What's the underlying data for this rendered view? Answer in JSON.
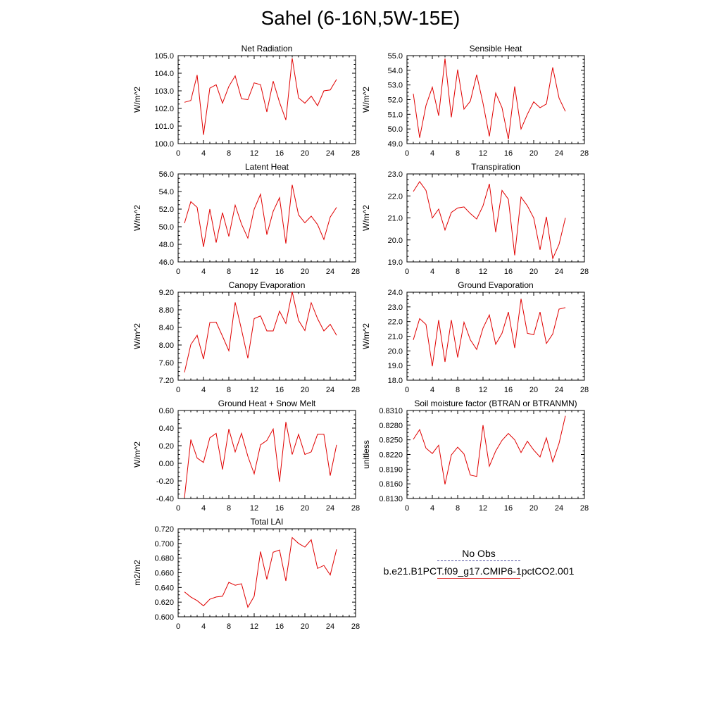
{
  "page_title": "Sahel (6-16N,5W-15E)",
  "legend": {
    "obs_label": "No Obs",
    "model_label": "b.e21.B1PCT.f09_g17.CMIP6-1pctCO2.001",
    "obs_color": "#5050a0",
    "model_color": "#e00000"
  },
  "chart_data": [
    {
      "type": "line",
      "title": "Net Radiation",
      "ylabel": "W/m^2",
      "x": [
        1,
        2,
        3,
        4,
        5,
        6,
        7,
        8,
        9,
        10,
        11,
        12,
        13,
        14,
        15,
        16,
        17,
        18,
        19,
        20,
        21,
        22,
        23,
        24,
        25
      ],
      "series": [
        {
          "values": [
            102.35,
            102.45,
            103.9,
            100.5,
            103.15,
            103.35,
            102.3,
            103.25,
            103.85,
            102.55,
            102.5,
            103.45,
            103.35,
            101.8,
            103.55,
            102.35,
            101.35,
            104.85,
            102.6,
            102.3,
            102.7,
            102.15,
            103.0,
            103.05,
            103.65
          ]
        }
      ],
      "xlim": [
        0,
        28
      ],
      "ylim": [
        100.0,
        105.0
      ],
      "xticks": [
        "0",
        "4",
        "8",
        "12",
        "16",
        "20",
        "24",
        "28"
      ],
      "yticks": [
        "100.0",
        "101.0",
        "102.0",
        "103.0",
        "104.0",
        "105.0"
      ]
    },
    {
      "type": "line",
      "title": "Sensible Heat",
      "ylabel": "W/m^2",
      "x": [
        1,
        2,
        3,
        4,
        5,
        6,
        7,
        8,
        9,
        10,
        11,
        12,
        13,
        14,
        15,
        16,
        17,
        18,
        19,
        20,
        21,
        22,
        23,
        24,
        25
      ],
      "series": [
        {
          "values": [
            52.4,
            49.4,
            51.6,
            52.85,
            50.9,
            54.8,
            50.8,
            54.05,
            51.35,
            51.9,
            53.7,
            51.75,
            49.5,
            52.45,
            51.45,
            49.3,
            52.9,
            50.0,
            51.0,
            51.85,
            51.45,
            51.7,
            54.2,
            52.1,
            51.2
          ]
        }
      ],
      "xlim": [
        0,
        28
      ],
      "ylim": [
        49.0,
        55.0
      ],
      "xticks": [
        "0",
        "4",
        "8",
        "12",
        "16",
        "20",
        "24",
        "28"
      ],
      "yticks": [
        "49.0",
        "50.0",
        "51.0",
        "52.0",
        "53.0",
        "54.0",
        "55.0"
      ]
    },
    {
      "type": "line",
      "title": "Latent Heat",
      "ylabel": "W/m^2",
      "x": [
        1,
        2,
        3,
        4,
        5,
        6,
        7,
        8,
        9,
        10,
        11,
        12,
        13,
        14,
        15,
        16,
        17,
        18,
        19,
        20,
        21,
        22,
        23,
        24,
        25
      ],
      "series": [
        {
          "values": [
            50.4,
            52.85,
            52.2,
            47.7,
            52.0,
            48.2,
            51.6,
            48.9,
            52.45,
            50.3,
            48.7,
            52.0,
            53.7,
            49.1,
            51.75,
            53.3,
            48.1,
            54.75,
            51.35,
            50.45,
            51.2,
            50.25,
            48.55,
            51.1,
            52.2
          ]
        }
      ],
      "xlim": [
        0,
        28
      ],
      "ylim": [
        46.0,
        56.0
      ],
      "xticks": [
        "0",
        "4",
        "8",
        "12",
        "16",
        "20",
        "24",
        "28"
      ],
      "yticks": [
        "46.0",
        "48.0",
        "50.0",
        "52.0",
        "54.0",
        "56.0"
      ]
    },
    {
      "type": "line",
      "title": "Transpiration",
      "ylabel": "W/m^2",
      "x": [
        1,
        2,
        3,
        4,
        5,
        6,
        7,
        8,
        9,
        10,
        11,
        12,
        13,
        14,
        15,
        16,
        17,
        18,
        19,
        20,
        21,
        22,
        23,
        24,
        25
      ],
      "series": [
        {
          "values": [
            22.2,
            22.65,
            22.25,
            21.0,
            21.4,
            20.45,
            21.25,
            21.45,
            21.5,
            21.2,
            20.95,
            21.55,
            22.55,
            20.35,
            22.25,
            21.85,
            19.3,
            21.95,
            21.55,
            21.0,
            19.55,
            21.05,
            19.15,
            19.8,
            21.0
          ]
        }
      ],
      "xlim": [
        0,
        28
      ],
      "ylim": [
        19.0,
        23.0
      ],
      "xticks": [
        "0",
        "4",
        "8",
        "12",
        "16",
        "20",
        "24",
        "28"
      ],
      "yticks": [
        "19.0",
        "20.0",
        "21.0",
        "22.0",
        "23.0"
      ]
    },
    {
      "type": "line",
      "title": "Canopy Evaporation",
      "ylabel": "W/m^2",
      "x": [
        1,
        2,
        3,
        4,
        5,
        6,
        7,
        8,
        9,
        10,
        11,
        12,
        13,
        14,
        15,
        16,
        17,
        18,
        19,
        20,
        21,
        22,
        23,
        24,
        25
      ],
      "series": [
        {
          "values": [
            7.38,
            8.01,
            8.22,
            7.68,
            8.51,
            8.52,
            8.2,
            7.87,
            8.97,
            8.35,
            7.7,
            8.6,
            8.66,
            8.32,
            8.32,
            8.77,
            8.49,
            9.21,
            8.56,
            8.33,
            8.96,
            8.6,
            8.32,
            8.47,
            8.22
          ]
        }
      ],
      "xlim": [
        0,
        28
      ],
      "ylim": [
        7.2,
        9.2
      ],
      "xticks": [
        "0",
        "4",
        "8",
        "12",
        "16",
        "20",
        "24",
        "28"
      ],
      "yticks": [
        "7.20",
        "7.60",
        "8.00",
        "8.40",
        "8.80",
        "9.20"
      ]
    },
    {
      "type": "line",
      "title": "Ground Evaporation",
      "ylabel": "W/m^2",
      "x": [
        1,
        2,
        3,
        4,
        5,
        6,
        7,
        8,
        9,
        10,
        11,
        12,
        13,
        14,
        15,
        16,
        17,
        18,
        19,
        20,
        21,
        22,
        23,
        24,
        25
      ],
      "series": [
        {
          "values": [
            20.75,
            22.2,
            21.8,
            18.95,
            22.1,
            19.25,
            22.1,
            19.55,
            21.95,
            20.75,
            20.1,
            21.55,
            22.45,
            20.45,
            21.2,
            22.65,
            20.2,
            23.55,
            21.2,
            21.1,
            22.65,
            20.5,
            21.15,
            22.85,
            22.95
          ]
        }
      ],
      "xlim": [
        0,
        28
      ],
      "ylim": [
        18.0,
        24.0
      ],
      "xticks": [
        "0",
        "4",
        "8",
        "12",
        "16",
        "20",
        "24",
        "28"
      ],
      "yticks": [
        "18.0",
        "19.0",
        "20.0",
        "21.0",
        "22.0",
        "23.0",
        "24.0"
      ]
    },
    {
      "type": "line",
      "title": "Ground Heat + Snow Melt",
      "ylabel": "W/m^2",
      "x": [
        1,
        2,
        3,
        4,
        5,
        6,
        7,
        8,
        9,
        10,
        11,
        12,
        13,
        14,
        15,
        16,
        17,
        18,
        19,
        20,
        21,
        22,
        23,
        24,
        25
      ],
      "series": [
        {
          "values": [
            -0.39,
            0.27,
            0.06,
            0.01,
            0.29,
            0.34,
            -0.07,
            0.39,
            0.13,
            0.34,
            0.08,
            -0.12,
            0.21,
            0.26,
            0.39,
            -0.21,
            0.47,
            0.1,
            0.33,
            0.1,
            0.13,
            0.33,
            0.33,
            -0.14,
            0.21
          ]
        }
      ],
      "xlim": [
        0,
        28
      ],
      "ylim": [
        -0.4,
        0.6
      ],
      "xticks": [
        "0",
        "4",
        "8",
        "12",
        "16",
        "20",
        "24",
        "28"
      ],
      "yticks": [
        "-0.40",
        "-0.20",
        "0.00",
        "0.20",
        "0.40",
        "0.60"
      ]
    },
    {
      "type": "line",
      "title": "Soil moisture factor (BTRAN or BTRANMN)",
      "ylabel": "unitless",
      "x": [
        1,
        2,
        3,
        4,
        5,
        6,
        7,
        8,
        9,
        10,
        11,
        12,
        13,
        14,
        15,
        16,
        17,
        18,
        19,
        20,
        21,
        22,
        23,
        24,
        25
      ],
      "series": [
        {
          "values": [
            0.8251,
            0.8271,
            0.8233,
            0.8222,
            0.8239,
            0.8159,
            0.8219,
            0.8235,
            0.8221,
            0.8178,
            0.8175,
            0.828,
            0.8196,
            0.8227,
            0.8249,
            0.8263,
            0.825,
            0.8224,
            0.8247,
            0.8229,
            0.8215,
            0.8254,
            0.8205,
            0.8243,
            0.8299
          ]
        }
      ],
      "xlim": [
        0,
        28
      ],
      "ylim": [
        0.813,
        0.831
      ],
      "xticks": [
        "0",
        "4",
        "8",
        "12",
        "16",
        "20",
        "24",
        "28"
      ],
      "yticks": [
        "0.8130",
        "0.8160",
        "0.8190",
        "0.8220",
        "0.8250",
        "0.8280",
        "0.8310"
      ]
    },
    {
      "type": "line",
      "title": "Total LAI",
      "ylabel": "m2/m2",
      "x": [
        1,
        2,
        3,
        4,
        5,
        6,
        7,
        8,
        9,
        10,
        11,
        12,
        13,
        14,
        15,
        16,
        17,
        18,
        19,
        20,
        21,
        22,
        23,
        24,
        25
      ],
      "series": [
        {
          "values": [
            0.634,
            0.627,
            0.622,
            0.615,
            0.624,
            0.627,
            0.628,
            0.647,
            0.643,
            0.645,
            0.613,
            0.628,
            0.689,
            0.651,
            0.688,
            0.691,
            0.649,
            0.708,
            0.7,
            0.695,
            0.705,
            0.666,
            0.67,
            0.657,
            0.692
          ]
        }
      ],
      "xlim": [
        0,
        28
      ],
      "ylim": [
        0.6,
        0.72
      ],
      "xticks": [
        "0",
        "4",
        "8",
        "12",
        "16",
        "20",
        "24",
        "28"
      ],
      "yticks": [
        "0.600",
        "0.620",
        "0.640",
        "0.660",
        "0.680",
        "0.700",
        "0.720"
      ]
    }
  ]
}
